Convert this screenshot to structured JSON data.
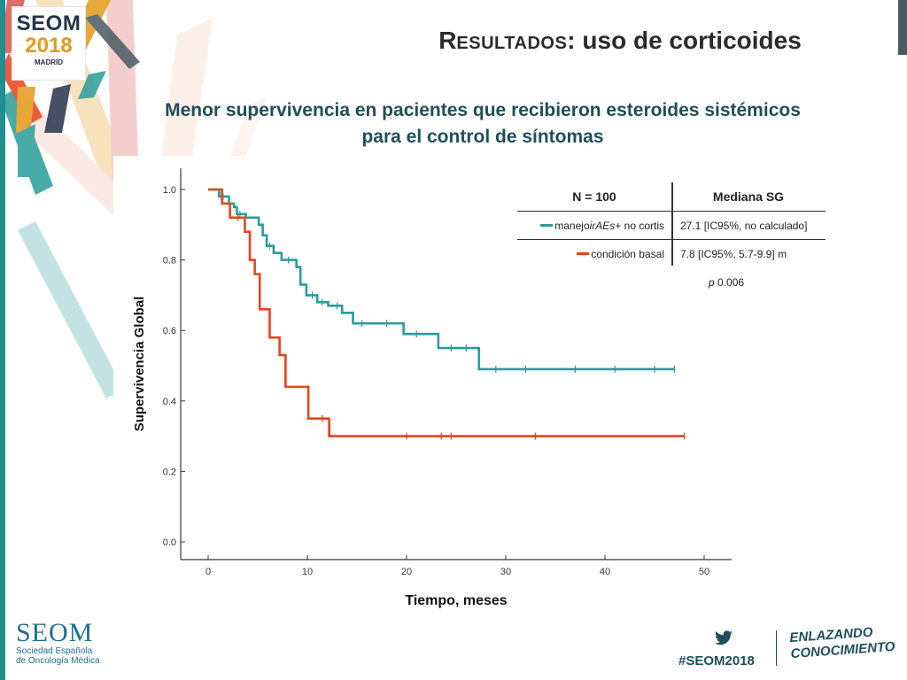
{
  "header": {
    "title_cap": "R",
    "title_sc": "ESULTADOS",
    "title_rest": ": uso de corticoides",
    "subtitle_line1": "Menor supervivencia en pacientes que recibieron esteroides sistémicos",
    "subtitle_line2": "para el control de síntomas"
  },
  "logo": {
    "seom": "SEOM",
    "year": "2018",
    "city": "MADRID"
  },
  "footer": {
    "org_short": "SEOM",
    "org_line1": "Sociedad Española",
    "org_line2": "de Oncología Médica",
    "hashtag": "#SEOM2018",
    "tagline_line1": "ENLAZANDO",
    "tagline_line2": "CONOCIMIENTO"
  },
  "legend_table": {
    "header_n": "N = 100",
    "header_median": "Mediana SG",
    "row1_label_pre": "manejo ",
    "row1_label_em": "irAEs",
    "row1_label_post": " + no cortis",
    "row1_value": "27.1 [IC95%, no calculado]",
    "row2_label": "condición basal",
    "row2_value": "7.8 [IC95%, 5.7-9.9] m",
    "p_label": "p",
    "p_value": " 0.006"
  },
  "colors": {
    "teal": "#2a9d9a",
    "orange": "#e8431c",
    "axis": "#333333"
  },
  "chart_data": {
    "type": "line",
    "title": "",
    "xlabel": "Tiempo, meses",
    "ylabel": "Supervivencia Global",
    "xlim": [
      0,
      50
    ],
    "ylim": [
      0.0,
      1.0
    ],
    "x_ticks": [
      0,
      10,
      20,
      30,
      40,
      50
    ],
    "y_ticks": [
      0.0,
      0.2,
      0.4,
      0.6,
      0.8,
      1.0
    ],
    "series": [
      {
        "name": "manejo irAEs + no cortis",
        "color": "#2a9d9a",
        "x": [
          0,
          0.8,
          1.1,
          2.1,
          2.6,
          2.9,
          3.8,
          5.1,
          5.5,
          5.9,
          6.6,
          7.4,
          8.9,
          9.3,
          9.9,
          11.0,
          12.1,
          13.5,
          14.6,
          19.7,
          23.2,
          27.3,
          47.0
        ],
        "y": [
          1.0,
          1.0,
          0.98,
          0.96,
          0.95,
          0.93,
          0.92,
          0.9,
          0.87,
          0.84,
          0.82,
          0.8,
          0.78,
          0.73,
          0.7,
          0.68,
          0.67,
          0.65,
          0.62,
          0.59,
          0.55,
          0.49,
          0.49
        ],
        "censor_x": [
          1.5,
          3.2,
          6.2,
          8.1,
          10.5,
          11.5,
          13.0,
          15.5,
          18.0,
          21.0,
          24.5,
          26.0,
          29.0,
          32.0,
          37.0,
          41.0,
          45.0,
          47.0
        ]
      },
      {
        "name": "condición basal",
        "color": "#e8431c",
        "x": [
          0,
          0.9,
          1.4,
          2.2,
          3.7,
          4.2,
          4.7,
          5.2,
          6.2,
          7.2,
          7.8,
          10.1,
          12.2,
          48.0
        ],
        "y": [
          1.0,
          1.0,
          0.96,
          0.92,
          0.88,
          0.8,
          0.76,
          0.66,
          0.58,
          0.53,
          0.44,
          0.35,
          0.3,
          0.3
        ],
        "censor_x": [
          3.0,
          11.5,
          20.0,
          23.5,
          24.5,
          33.0,
          48.0
        ]
      }
    ],
    "legend": "top-right",
    "grid": false
  }
}
